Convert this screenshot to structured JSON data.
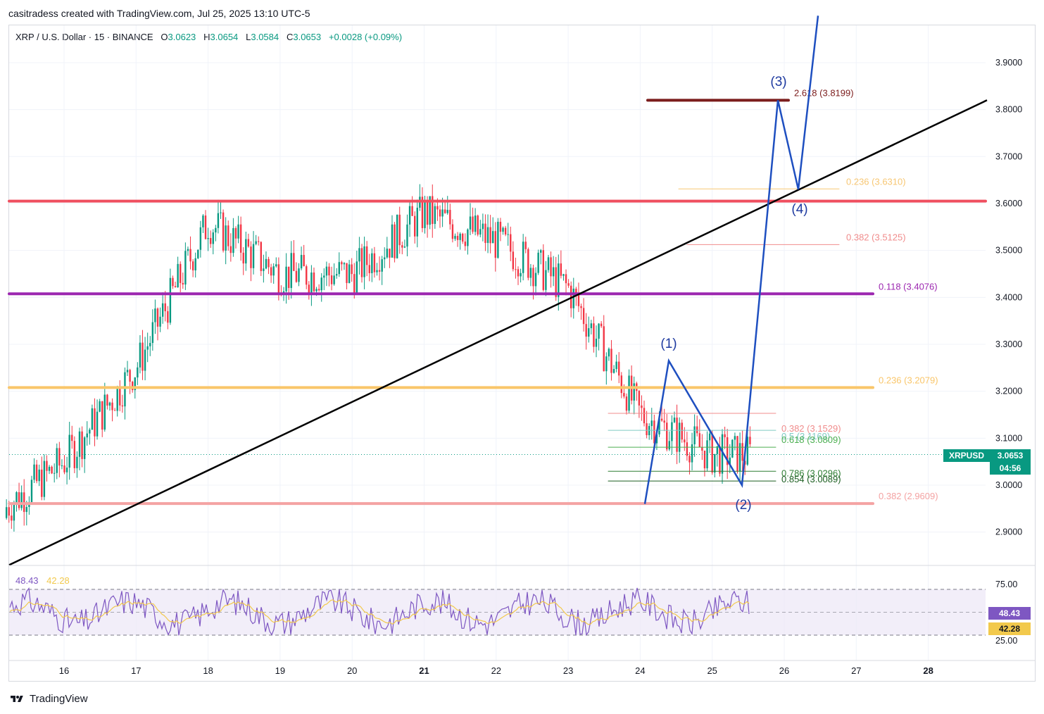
{
  "header": {
    "credit": "casitradess created with TradingView.com, Jul 25, 2025 13:10 UTC-5",
    "symbol": "XRP / U.S. Dollar · 15 · BINANCE",
    "o_label": "O",
    "o": "3.0623",
    "h_label": "H",
    "h": "3.0654",
    "l_label": "L",
    "l": "3.0584",
    "c_label": "C",
    "c": "3.0653",
    "change": "+0.0028 (+0.09%)"
  },
  "price_badge": {
    "ticker": "XRPUSD",
    "price": "3.0653",
    "countdown": "04:56",
    "color": "#089981"
  },
  "rsi": {
    "value": "48.43",
    "ma": "42.28",
    "upper": "75.00",
    "lower": "25.00",
    "line_color": "#7e57c2",
    "ma_color": "#f2c94c"
  },
  "footer": {
    "brand": "TradingView",
    "logo_icon": "tradingview-logo-icon"
  },
  "chart_data": {
    "type": "line",
    "series": [
      {
        "x": [
          "Jul 15",
          "Jul 16",
          "Jul 17",
          "Jul 18",
          "Jul 19",
          "Jul 20",
          "Jul 21",
          "Jul 22",
          "Jul 23",
          "Jul 24",
          "Jul 25"
        ],
        "values": [
          2.93,
          3.05,
          3.25,
          3.56,
          3.45,
          3.45,
          3.58,
          3.52,
          3.42,
          3.15,
          3.0653
        ]
      }
    ],
    "x_axis": {
      "tick_labels": [
        "16",
        "17",
        "18",
        "19",
        "20",
        "21",
        "22",
        "23",
        "24",
        "25",
        "26",
        "27",
        "28"
      ]
    },
    "y_axis": {
      "tick_labels": [
        "3.9000",
        "3.8000",
        "3.7000",
        "3.6000",
        "3.5000",
        "3.4000",
        "3.3000",
        "3.2000",
        "3.1000",
        "3.0000",
        "2.9000"
      ],
      "ylim": [
        2.83,
        3.99
      ]
    },
    "horizontal_levels": [
      {
        "label": "2.618 (3.8199)",
        "price": 3.8199,
        "color": "#7b1c1c"
      },
      {
        "label": "0.236 (3.6310)",
        "price": 3.631,
        "color": "#f7c774"
      },
      {
        "label": "",
        "price": 3.605,
        "color": "#ef4f5f"
      },
      {
        "label": "0.382 (3.5125)",
        "price": 3.5125,
        "color": "#f08c8c"
      },
      {
        "label": "0.118 (3.4076)",
        "price": 3.4076,
        "color": "#9c27b0"
      },
      {
        "label": "0.236 (3.2079)",
        "price": 3.2079,
        "color": "#f9c66a"
      },
      {
        "label": "0.382 (3.1529)",
        "price": 3.1529,
        "color": "#f08c8c"
      },
      {
        "label": "0.5 (3.1169)",
        "price": 3.1169,
        "color": "#80cbc4"
      },
      {
        "label": "0.618 (3.0809)",
        "price": 3.0809,
        "color": "#4caf50"
      },
      {
        "label": "0.786 (3.0296)",
        "price": 3.0296,
        "color": "#2e7d32"
      },
      {
        "label": "0.854 (3.0089)",
        "price": 3.0089,
        "color": "#1b5e20"
      },
      {
        "label": "0.382 (2.9609)",
        "price": 2.9609,
        "color": "#f4a3a3"
      }
    ],
    "wave_labels": [
      {
        "label": "(1)",
        "date": "Jul 24",
        "price": 3.265
      },
      {
        "label": "(2)",
        "date": "Jul 25",
        "price": 3.005
      },
      {
        "label": "(3)",
        "date": "Jul 26",
        "price": 3.82
      },
      {
        "label": "(4)",
        "date": "Jul 26",
        "price": 3.63
      }
    ],
    "trendline": {
      "start": {
        "date": "Jul 15",
        "price": 2.83
      },
      "end": {
        "date": "Jul 28",
        "price": 3.82
      }
    }
  }
}
